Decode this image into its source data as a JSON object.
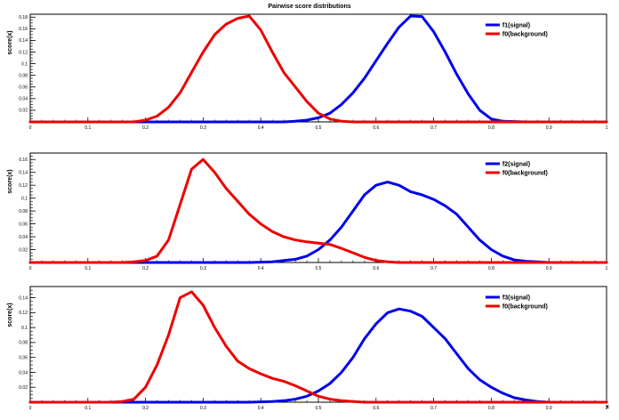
{
  "title": "Pairwise score distributions",
  "colors": {
    "signal": "#0000ee",
    "background": "#ee0000",
    "axis": "#000000",
    "frame": "#000000"
  },
  "chart_data": [
    {
      "type": "line",
      "title": "",
      "xlabel": "",
      "ylabel": "score(x)",
      "xlim": [
        0,
        1
      ],
      "ylim": [
        0,
        0.185
      ],
      "xticks": [
        "0",
        "0.1",
        "0.2",
        "0.3",
        "0.4",
        "0.5",
        "0.6",
        "0.7",
        "0.8",
        "0.9",
        "1"
      ],
      "yticks": [
        {
          "v": 0.02,
          "label": "0.02"
        },
        {
          "v": 0.04,
          "label": "0.04"
        },
        {
          "v": 0.06,
          "label": "0.06"
        },
        {
          "v": 0.08,
          "label": "0.08"
        },
        {
          "v": 0.1,
          "label": "0.1"
        },
        {
          "v": 0.12,
          "label": "0.12"
        },
        {
          "v": 0.14,
          "label": "0.14"
        },
        {
          "v": 0.16,
          "label": "0.16"
        },
        {
          "v": 0.18,
          "label": "0.18"
        }
      ],
      "legend_placement": "top-right",
      "series": [
        {
          "name": "f1(signal)",
          "color": "#0000ee",
          "x": [
            0.0,
            0.28,
            0.32,
            0.36,
            0.4,
            0.44,
            0.46,
            0.48,
            0.5,
            0.52,
            0.54,
            0.56,
            0.58,
            0.6,
            0.62,
            0.64,
            0.66,
            0.68,
            0.7,
            0.72,
            0.74,
            0.76,
            0.78,
            0.8,
            0.82,
            0.86,
            1.0
          ],
          "y": [
            0.0,
            0.0,
            0.0,
            0.0,
            0.0,
            0.0,
            0.001,
            0.003,
            0.007,
            0.015,
            0.03,
            0.05,
            0.075,
            0.105,
            0.135,
            0.163,
            0.182,
            0.181,
            0.155,
            0.12,
            0.082,
            0.048,
            0.02,
            0.005,
            0.001,
            0.0,
            0.0
          ]
        },
        {
          "name": "f0(background)",
          "color": "#ee0000",
          "x": [
            0.0,
            0.18,
            0.2,
            0.22,
            0.24,
            0.26,
            0.28,
            0.3,
            0.32,
            0.34,
            0.36,
            0.38,
            0.4,
            0.42,
            0.44,
            0.46,
            0.48,
            0.5,
            0.52,
            0.54,
            0.56,
            0.6,
            1.0
          ],
          "y": [
            0.0,
            0.0,
            0.003,
            0.01,
            0.025,
            0.05,
            0.085,
            0.12,
            0.15,
            0.168,
            0.178,
            0.182,
            0.158,
            0.12,
            0.085,
            0.06,
            0.035,
            0.015,
            0.005,
            0.001,
            0.0,
            0.0,
            0.0
          ]
        }
      ]
    },
    {
      "type": "line",
      "title": "",
      "xlabel": "",
      "ylabel": "score(x)",
      "xlim": [
        0,
        1
      ],
      "ylim": [
        0,
        0.17
      ],
      "xticks": [
        "0",
        "0.1",
        "0.2",
        "0.3",
        "0.4",
        "0.5",
        "0.6",
        "0.7",
        "0.8",
        "0.9",
        "1"
      ],
      "yticks": [
        {
          "v": 0.02,
          "label": "0.02"
        },
        {
          "v": 0.04,
          "label": "0.04"
        },
        {
          "v": 0.06,
          "label": "0.06"
        },
        {
          "v": 0.08,
          "label": "0.08"
        },
        {
          "v": 0.1,
          "label": "0.1"
        },
        {
          "v": 0.12,
          "label": "0.12"
        },
        {
          "v": 0.14,
          "label": "0.14"
        },
        {
          "v": 0.16,
          "label": "0.16"
        }
      ],
      "legend_placement": "top-right",
      "series": [
        {
          "name": "f2(signal)",
          "color": "#0000ee",
          "x": [
            0.0,
            0.38,
            0.42,
            0.44,
            0.46,
            0.48,
            0.5,
            0.52,
            0.54,
            0.56,
            0.58,
            0.6,
            0.62,
            0.64,
            0.66,
            0.68,
            0.7,
            0.72,
            0.74,
            0.76,
            0.78,
            0.8,
            0.82,
            0.84,
            0.86,
            0.88,
            0.9,
            1.0
          ],
          "y": [
            0.0,
            0.0,
            0.001,
            0.003,
            0.005,
            0.01,
            0.02,
            0.035,
            0.055,
            0.08,
            0.105,
            0.12,
            0.125,
            0.12,
            0.11,
            0.105,
            0.098,
            0.088,
            0.075,
            0.055,
            0.035,
            0.02,
            0.01,
            0.004,
            0.002,
            0.001,
            0.0,
            0.0
          ]
        },
        {
          "name": "f0(background)",
          "color": "#ee0000",
          "x": [
            0.0,
            0.16,
            0.18,
            0.2,
            0.22,
            0.24,
            0.26,
            0.28,
            0.3,
            0.32,
            0.34,
            0.36,
            0.38,
            0.4,
            0.42,
            0.44,
            0.46,
            0.48,
            0.5,
            0.52,
            0.54,
            0.56,
            0.58,
            0.6,
            0.62,
            0.64,
            0.66,
            1.0
          ],
          "y": [
            0.0,
            0.0,
            0.001,
            0.003,
            0.01,
            0.035,
            0.09,
            0.145,
            0.16,
            0.14,
            0.115,
            0.095,
            0.075,
            0.06,
            0.048,
            0.04,
            0.035,
            0.032,
            0.03,
            0.028,
            0.022,
            0.015,
            0.008,
            0.003,
            0.001,
            0.0,
            0.0,
            0.0
          ]
        }
      ]
    },
    {
      "type": "line",
      "title": "",
      "xlabel": "x",
      "ylabel": "score(x)",
      "xlim": [
        0,
        1
      ],
      "ylim": [
        0,
        0.155
      ],
      "xticks": [
        "0",
        "0.1",
        "0.2",
        "0.3",
        "0.4",
        "0.5",
        "0.6",
        "0.7",
        "0.8",
        "0.9",
        "1"
      ],
      "yticks": [
        {
          "v": 0.02,
          "label": "0.02"
        },
        {
          "v": 0.04,
          "label": "0.04"
        },
        {
          "v": 0.06,
          "label": "0.06"
        },
        {
          "v": 0.08,
          "label": "0.08"
        },
        {
          "v": 0.1,
          "label": "0.1"
        },
        {
          "v": 0.12,
          "label": "0.12"
        },
        {
          "v": 0.14,
          "label": "0.14"
        }
      ],
      "legend_placement": "top-right",
      "series": [
        {
          "name": "f3(signal)",
          "color": "#0000ee",
          "x": [
            0.0,
            0.38,
            0.42,
            0.44,
            0.46,
            0.48,
            0.5,
            0.52,
            0.54,
            0.56,
            0.58,
            0.6,
            0.62,
            0.64,
            0.66,
            0.68,
            0.7,
            0.72,
            0.74,
            0.76,
            0.78,
            0.8,
            0.82,
            0.84,
            0.86,
            0.88,
            0.9,
            1.0
          ],
          "y": [
            0.0,
            0.0,
            0.001,
            0.002,
            0.004,
            0.008,
            0.015,
            0.025,
            0.04,
            0.06,
            0.085,
            0.105,
            0.12,
            0.125,
            0.122,
            0.115,
            0.1,
            0.085,
            0.065,
            0.045,
            0.03,
            0.02,
            0.012,
            0.006,
            0.003,
            0.001,
            0.0,
            0.0
          ]
        },
        {
          "name": "f0(background)",
          "color": "#ee0000",
          "x": [
            0.0,
            0.14,
            0.16,
            0.18,
            0.2,
            0.22,
            0.24,
            0.26,
            0.28,
            0.3,
            0.32,
            0.34,
            0.36,
            0.38,
            0.4,
            0.42,
            0.44,
            0.46,
            0.48,
            0.5,
            0.52,
            0.54,
            0.56,
            0.58,
            0.6,
            0.62,
            0.64,
            0.66,
            1.0
          ],
          "y": [
            0.0,
            0.0,
            0.001,
            0.004,
            0.02,
            0.05,
            0.09,
            0.14,
            0.148,
            0.13,
            0.1,
            0.075,
            0.055,
            0.045,
            0.038,
            0.032,
            0.028,
            0.022,
            0.015,
            0.008,
            0.004,
            0.002,
            0.001,
            0.0,
            0.0,
            0.0,
            0.0,
            0.0,
            0.0
          ]
        }
      ]
    }
  ]
}
